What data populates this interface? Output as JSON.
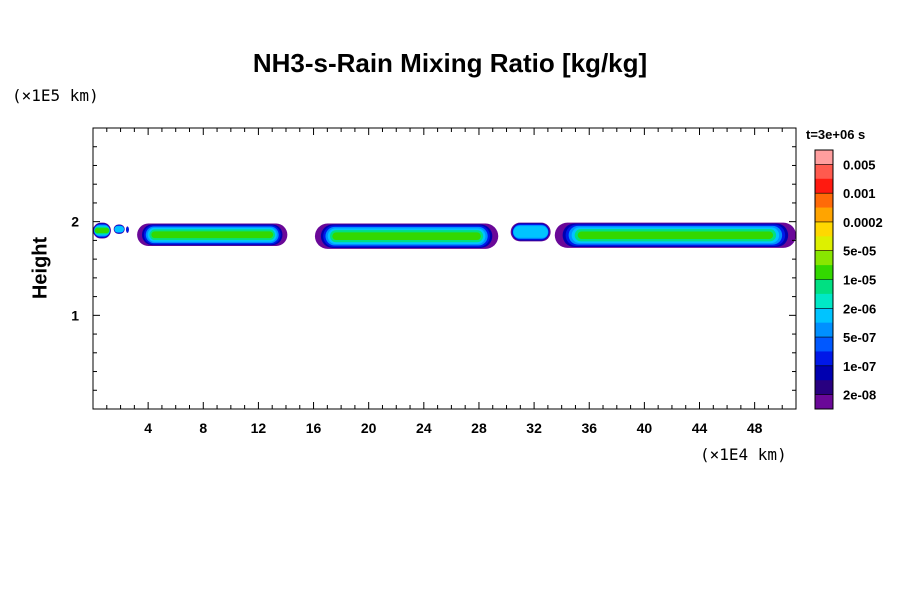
{
  "chart_data": {
    "type": "heatmap",
    "title": "NH3-s-Rain Mixing Ratio [kg/kg]",
    "xlabel": "",
    "ylabel": "Height",
    "x_scale_label": "(×1E4 km)",
    "y_scale_label": "(×1E5 km)",
    "time_label": "t=3e+06 s",
    "xlim": [
      0,
      51
    ],
    "ylim": [
      0,
      3
    ],
    "x_ticks": [
      4,
      8,
      12,
      16,
      20,
      24,
      28,
      32,
      36,
      40,
      44,
      48
    ],
    "y_ticks": [
      1,
      2
    ],
    "colorbar": {
      "labels": [
        "0.005",
        "0.001",
        "0.0002",
        "5e-05",
        "1e-05",
        "2e-06",
        "5e-07",
        "1e-07",
        "2e-08"
      ],
      "colors": [
        "#ff9e9e",
        "#ff5a4e",
        "#ff1a10",
        "#ff6a08",
        "#ffa400",
        "#ffd800",
        "#ddf000",
        "#88e600",
        "#33d800",
        "#00e082",
        "#00e8c6",
        "#00c4ff",
        "#0090ff",
        "#0058ff",
        "#0018e8",
        "#0000b0",
        "#280080",
        "#6a0898"
      ]
    },
    "cloud_layers": [
      {
        "x_start": 0,
        "x_end": 1.3,
        "base": 1.82,
        "top": 1.99,
        "core": "inner"
      },
      {
        "x_start": 1.5,
        "x_end": 2.3,
        "base": 1.87,
        "top": 1.97,
        "core": "middle"
      },
      {
        "x_start": 2.4,
        "x_end": 2.6,
        "base": 1.88,
        "top": 1.95,
        "core": "outer"
      },
      {
        "x_start": 3.2,
        "x_end": 14.1,
        "base": 1.74,
        "top": 1.98,
        "core": "inner"
      },
      {
        "x_start": 16.1,
        "x_end": 29.4,
        "base": 1.71,
        "top": 1.98,
        "core": "inner"
      },
      {
        "x_start": 30.3,
        "x_end": 33.2,
        "base": 1.79,
        "top": 1.99,
        "core": "middle"
      },
      {
        "x_start": 33.5,
        "x_end": 51,
        "base": 1.72,
        "top": 1.99,
        "core": "inner"
      }
    ]
  }
}
